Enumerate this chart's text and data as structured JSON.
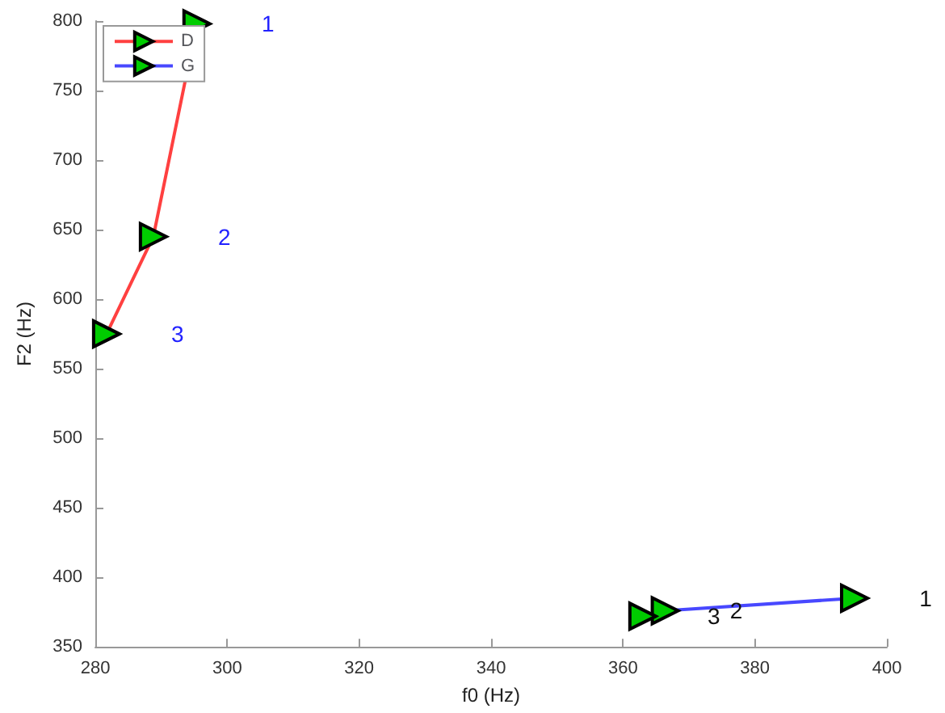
{
  "chart_data": {
    "type": "line",
    "xlabel": "f0 (Hz)",
    "ylabel": "F2 (Hz)",
    "series": [
      {
        "name": "D",
        "color": "#ff4040",
        "x": [
          295.4,
          288.8,
          281.7
        ],
        "values": [
          798,
          645,
          575
        ]
      },
      {
        "name": "G",
        "color": "#4848ff",
        "x": [
          395.1,
          366.4,
          363
        ],
        "values": [
          385,
          376,
          372
        ]
      }
    ],
    "annotations": [
      "1",
      "2",
      "3",
      "1",
      "2",
      "3"
    ],
    "xlim": [
      280,
      400
    ],
    "xticks": [
      280,
      300,
      320,
      340,
      360,
      380,
      400
    ],
    "ylim": [
      350,
      800
    ],
    "yticks": [
      350,
      400,
      450,
      500,
      550,
      600,
      650,
      700,
      750,
      800
    ],
    "marker": "triangle",
    "line_style": "solid",
    "legend": "top left",
    "grid": false
  }
}
